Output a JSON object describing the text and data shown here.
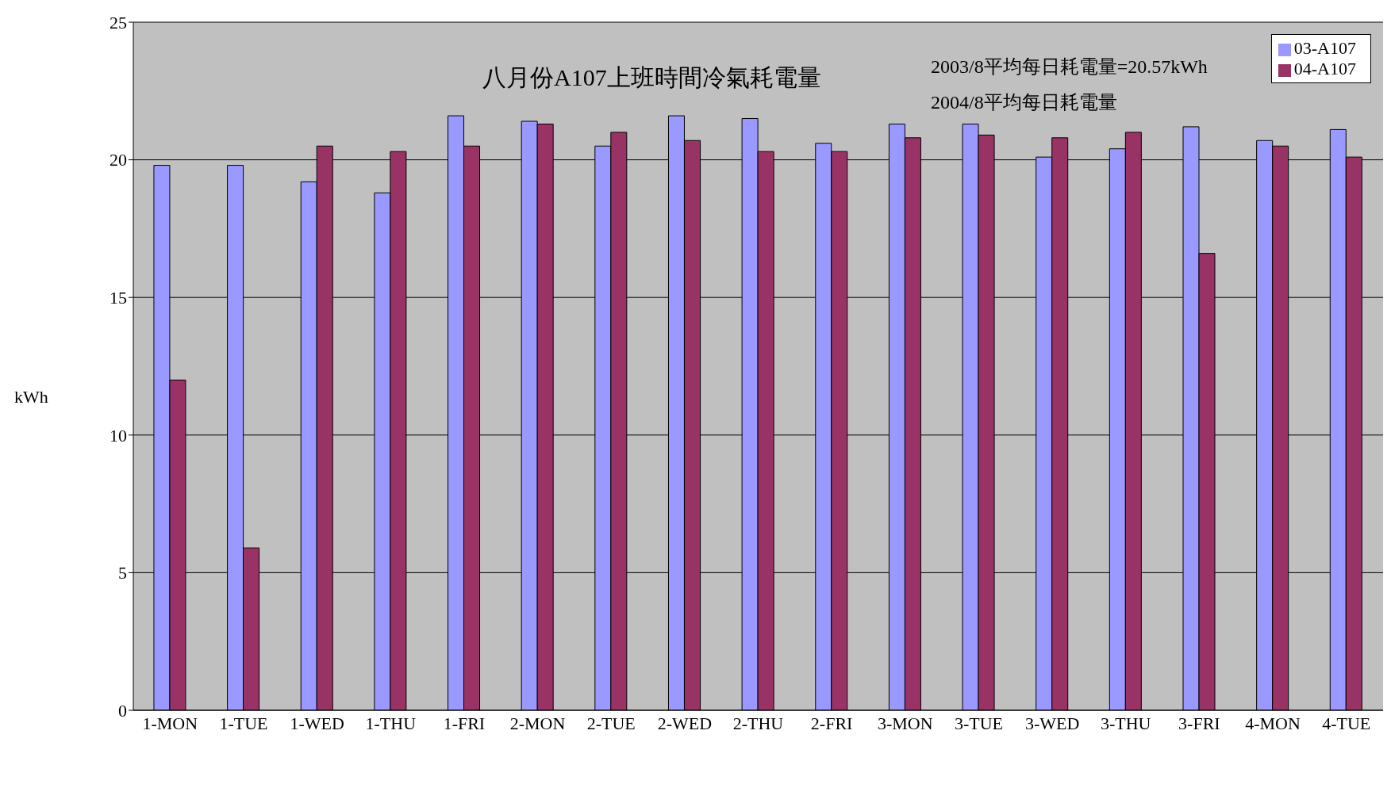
{
  "chart_data": {
    "type": "bar",
    "title": "八月份A107上班時間冷氣耗電量",
    "ylabel": "kWh",
    "categories": [
      "1-MON",
      "1-TUE",
      "1-WED",
      "1-THU",
      "1-FRI",
      "2-MON",
      "2-TUE",
      "2-WED",
      "2-THU",
      "2-FRI",
      "3-MON",
      "3-TUE",
      "3-WED",
      "3-THU",
      "3-FRI",
      "4-MON",
      "4-TUE"
    ],
    "series": [
      {
        "name": "03-A107",
        "color": "#9999ff",
        "values": [
          19.8,
          19.8,
          19.2,
          18.8,
          21.6,
          21.4,
          20.5,
          21.6,
          21.5,
          20.6,
          21.3,
          21.3,
          20.1,
          20.4,
          21.2,
          20.7,
          21.1
        ]
      },
      {
        "name": "04-A107",
        "color": "#993366",
        "values": [
          12.0,
          5.9,
          20.5,
          20.3,
          20.5,
          21.3,
          21.0,
          20.7,
          20.3,
          20.3,
          20.8,
          20.9,
          20.8,
          21.0,
          16.6,
          20.5,
          20.1
        ]
      }
    ],
    "ylim": [
      0,
      25
    ],
    "yticks": [
      0,
      5,
      10,
      15,
      20,
      25
    ],
    "grid": "y",
    "legend": "top right",
    "annotations": [
      "2003/8平均每日耗電量=20.57kWh",
      "2004/8平均每日耗電量"
    ]
  }
}
